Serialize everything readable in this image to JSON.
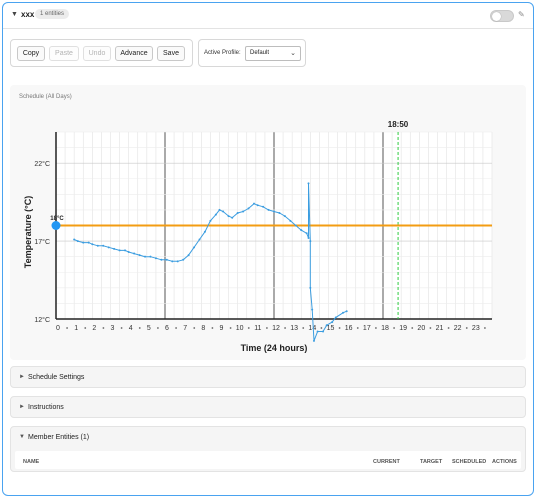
{
  "header": {
    "title": "xxx",
    "badge": "1 entities",
    "enabled": false
  },
  "toolbar": {
    "buttons": [
      {
        "label": "Copy",
        "disabled": false
      },
      {
        "label": "Paste",
        "disabled": true
      },
      {
        "label": "Undo",
        "disabled": true
      },
      {
        "label": "Advance",
        "disabled": false
      },
      {
        "label": "Save",
        "disabled": false
      }
    ]
  },
  "profile": {
    "label": "Active Profile:",
    "selected": "Default"
  },
  "schedule": {
    "caption": "Schedule (All Days)",
    "chart_data": {
      "type": "line",
      "xlabel": "Time (24 hours)",
      "ylabel": "Temperature (°C)",
      "xlim": [
        0,
        24
      ],
      "ylim": [
        12,
        24
      ],
      "x_ticks": [
        "0",
        "1",
        "2",
        "3",
        "4",
        "5",
        "6",
        "7",
        "8",
        "9",
        "10",
        "11",
        "12",
        "13",
        "14",
        "15",
        "16",
        "17",
        "18",
        "19",
        "20",
        "21",
        "22",
        "23"
      ],
      "y_ticks": [
        "12°C",
        "17°C",
        "22°C"
      ],
      "grid": true,
      "schedule_setpoint": {
        "name": "18°C",
        "value": 18.0,
        "color": "#f39c12"
      },
      "setpoint_handle_label": "18°C",
      "now_marker": {
        "label": "18:50",
        "x": 18.83,
        "color": "#2ecc40"
      },
      "series": [
        {
          "color": "#3b9de0",
          "points": [
            [
              1.0,
              17.1
            ],
            [
              1.2,
              17.0
            ],
            [
              1.5,
              16.9
            ],
            [
              1.8,
              16.9
            ],
            [
              2.0,
              16.8
            ],
            [
              2.3,
              16.7
            ],
            [
              2.6,
              16.7
            ],
            [
              2.9,
              16.6
            ],
            [
              3.2,
              16.5
            ],
            [
              3.5,
              16.4
            ],
            [
              3.8,
              16.4
            ],
            [
              4.0,
              16.3
            ],
            [
              4.3,
              16.2
            ],
            [
              4.6,
              16.1
            ],
            [
              4.9,
              16.0
            ],
            [
              5.2,
              16.0
            ],
            [
              5.5,
              15.9
            ],
            [
              5.8,
              15.8
            ],
            [
              6.1,
              15.8
            ],
            [
              6.4,
              15.7
            ],
            [
              6.7,
              15.7
            ],
            [
              7.0,
              15.8
            ],
            [
              7.3,
              16.1
            ],
            [
              7.6,
              16.6
            ],
            [
              7.9,
              17.1
            ],
            [
              8.2,
              17.6
            ],
            [
              8.5,
              18.3
            ],
            [
              8.8,
              18.7
            ],
            [
              9.0,
              19.0
            ],
            [
              9.2,
              18.9
            ],
            [
              9.5,
              18.6
            ],
            [
              9.7,
              18.5
            ],
            [
              10.0,
              18.8
            ],
            [
              10.3,
              18.9
            ],
            [
              10.6,
              19.1
            ],
            [
              10.9,
              19.4
            ],
            [
              11.1,
              19.3
            ],
            [
              11.4,
              19.2
            ],
            [
              11.7,
              19.0
            ],
            [
              12.0,
              18.9
            ],
            [
              12.3,
              18.8
            ],
            [
              12.6,
              18.6
            ],
            [
              12.9,
              18.3
            ],
            [
              13.2,
              18.0
            ],
            [
              13.5,
              17.7
            ],
            [
              13.8,
              17.5
            ],
            [
              13.9,
              17.2
            ],
            [
              13.9,
              20.7
            ],
            [
              14.0,
              17.0
            ],
            [
              14.0,
              14.0
            ],
            [
              14.1,
              12.6
            ],
            [
              14.2,
              10.6
            ],
            [
              14.4,
              11.2
            ],
            [
              14.7,
              11.2
            ],
            [
              14.9,
              11.6
            ],
            [
              15.2,
              11.8
            ],
            [
              15.4,
              12.1
            ],
            [
              15.8,
              12.4
            ],
            [
              16.0,
              12.5
            ]
          ]
        }
      ]
    }
  },
  "sections": {
    "schedule_settings": "Schedule Settings",
    "instructions": "Instructions",
    "members_title": "Member Entities (1)",
    "columns": [
      "NAME",
      "CURRENT",
      "TARGET",
      "SCHEDULED",
      "ACTIONS"
    ]
  }
}
